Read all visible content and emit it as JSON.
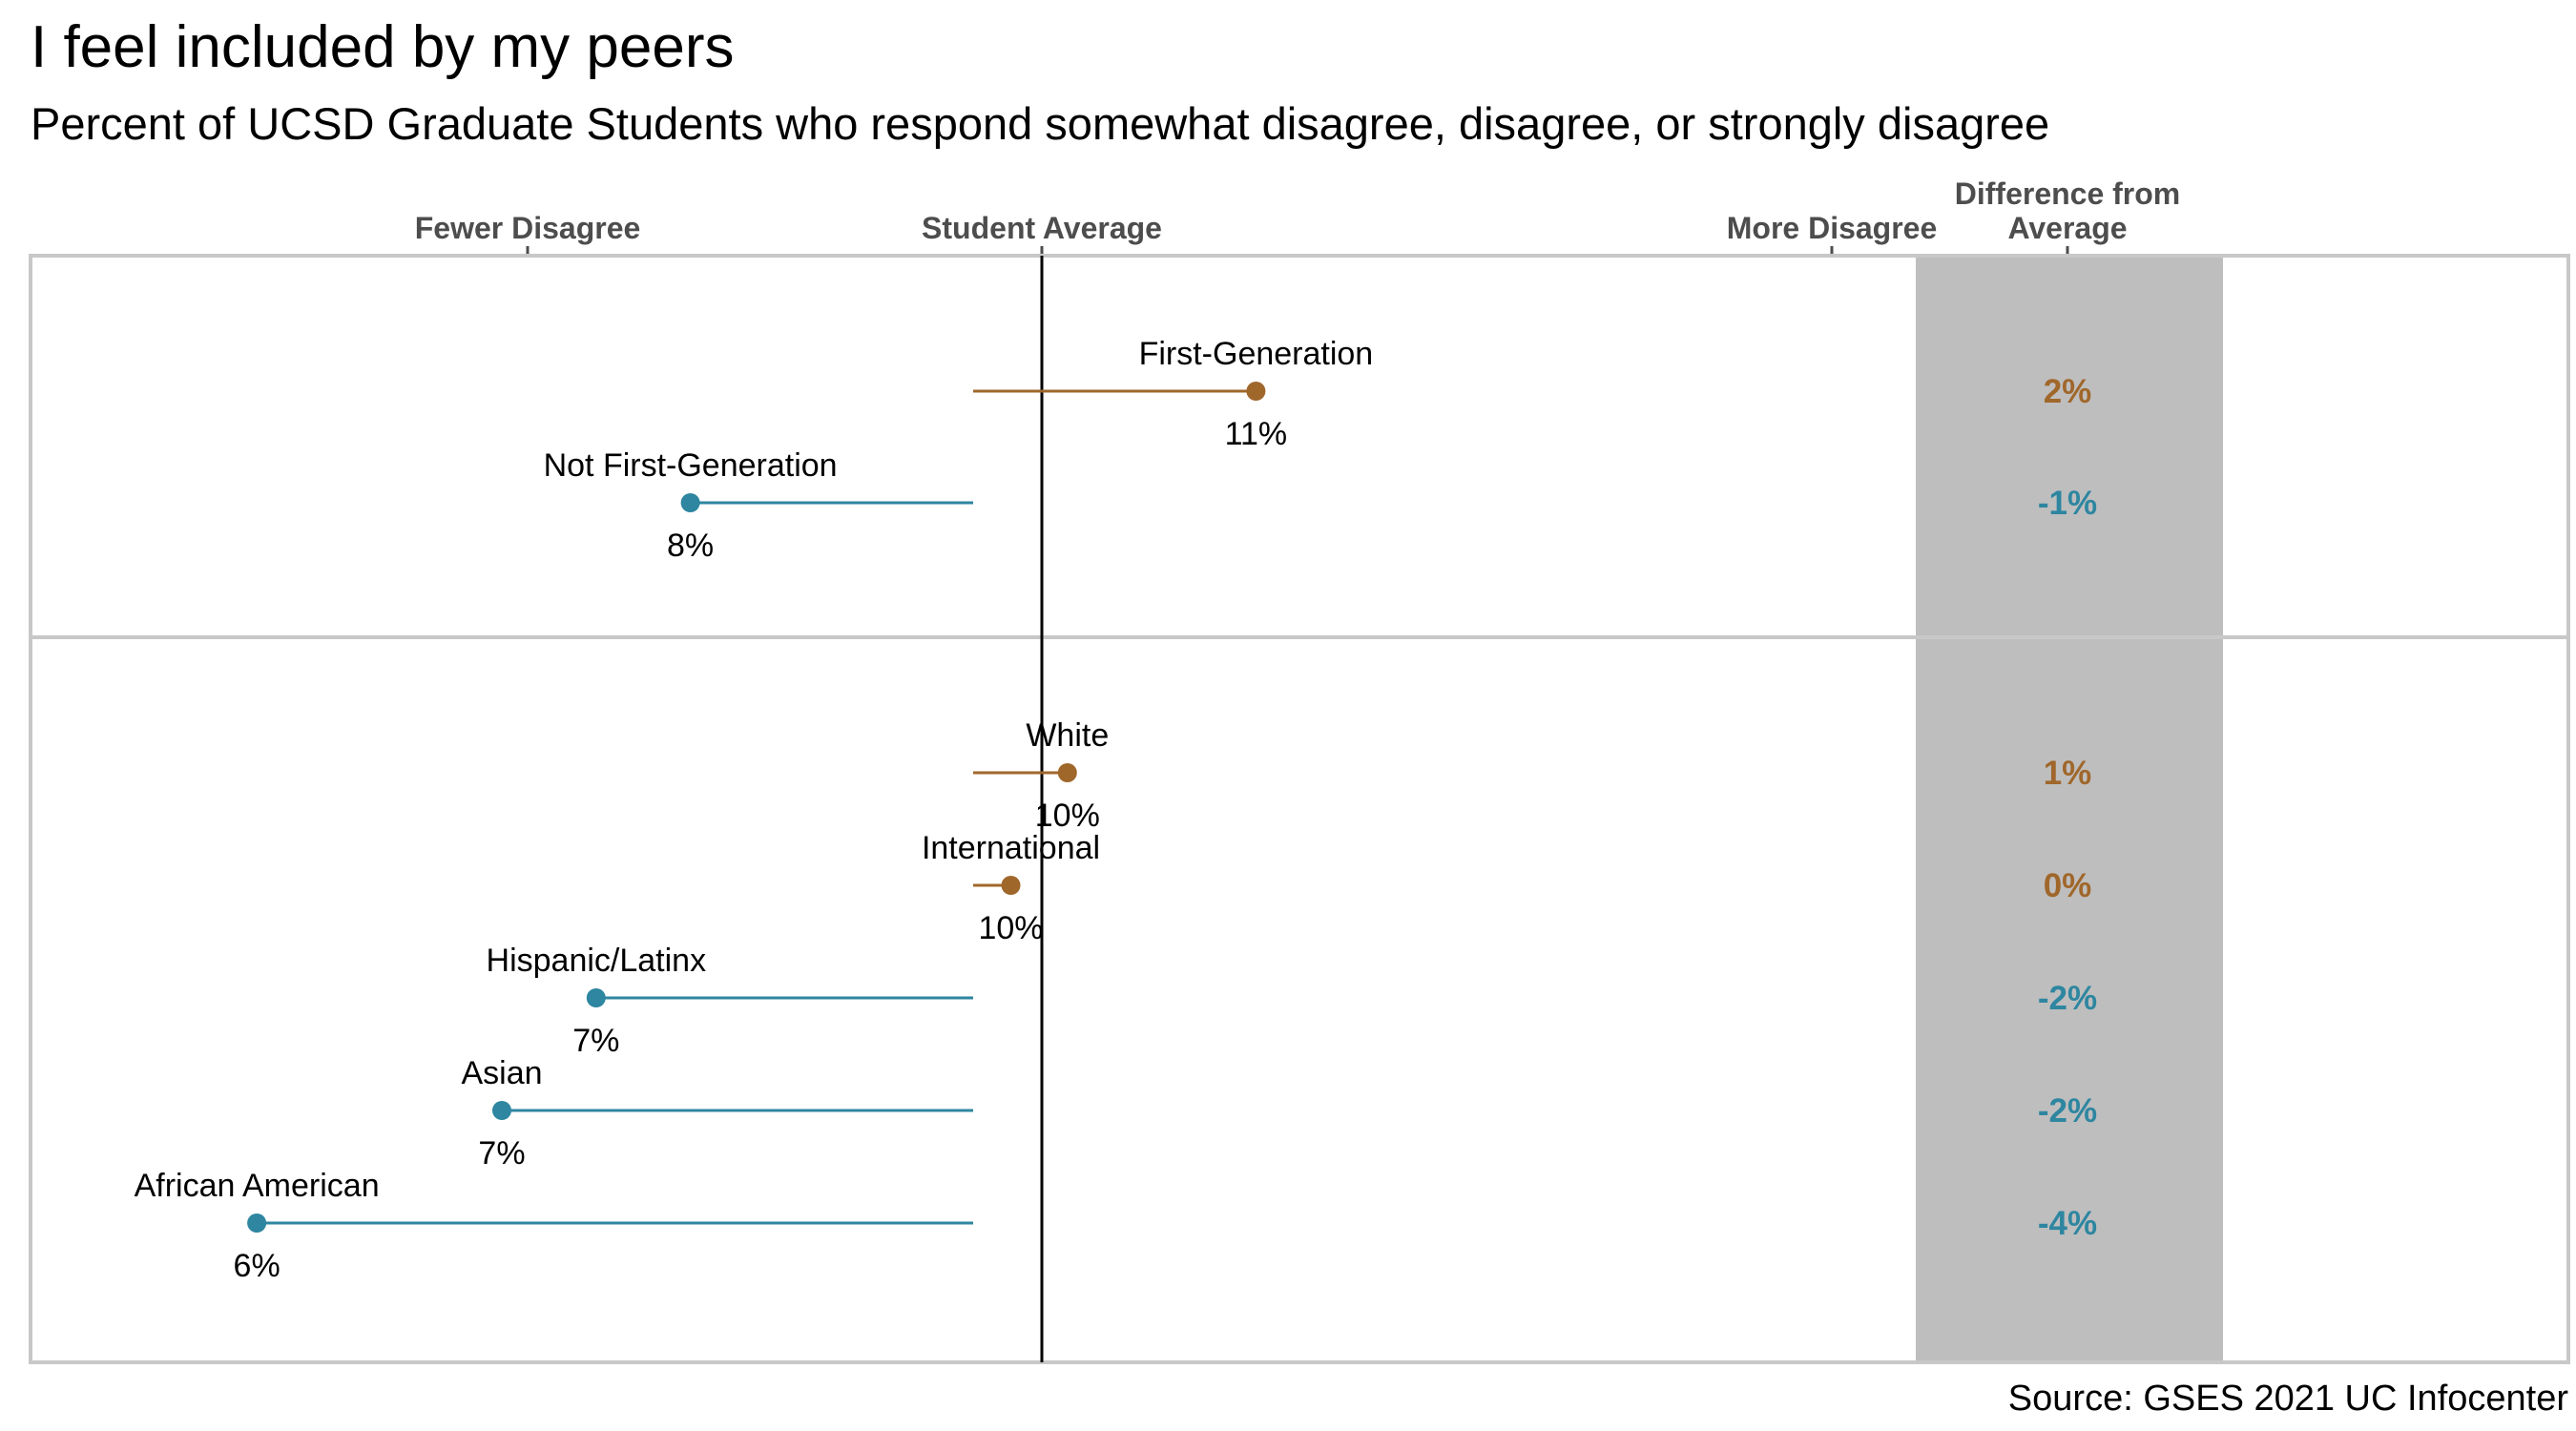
{
  "title": "I feel included by my peers",
  "subtitle": "Percent of UCSD Graduate Students who respond somewhat disagree, disagree, or strongly disagree",
  "source": "Source: GSES 2021 UC Infocenter",
  "colors": {
    "above": "#a0672b",
    "below": "#2e86a0",
    "panel_band": "#bebebe",
    "border": "#c8c8c8"
  },
  "chart_data": {
    "type": "dot-difference",
    "top_axis": {
      "left": "Fewer Disagree",
      "center": "Student Average",
      "right": "More Disagree",
      "diff_header_line1": "Difference from",
      "diff_header_line2": "Average"
    },
    "xlim": [
      4.5,
      14.5
    ],
    "average": 9.5,
    "panels": [
      {
        "rows": [
          {
            "group": "First-Generation",
            "value": 11,
            "value_label": "11%",
            "diff_label": "2%"
          },
          {
            "group": "Not First-Generation",
            "value": 8,
            "value_label": "8%",
            "diff_label": "-1%"
          }
        ]
      },
      {
        "rows": [
          {
            "group": "White",
            "value": 10,
            "value_label": "10%",
            "diff_label": "1%"
          },
          {
            "group": "International",
            "value": 9.7,
            "value_label": "10%",
            "diff_label": "0%"
          },
          {
            "group": "Hispanic/Latinx",
            "value": 7.5,
            "value_label": "7%",
            "diff_label": "-2%"
          },
          {
            "group": "Asian",
            "value": 7,
            "value_label": "7%",
            "diff_label": "-2%"
          },
          {
            "group": "African American",
            "value": 5.7,
            "value_label": "6%",
            "diff_label": "-4%"
          }
        ]
      }
    ]
  }
}
